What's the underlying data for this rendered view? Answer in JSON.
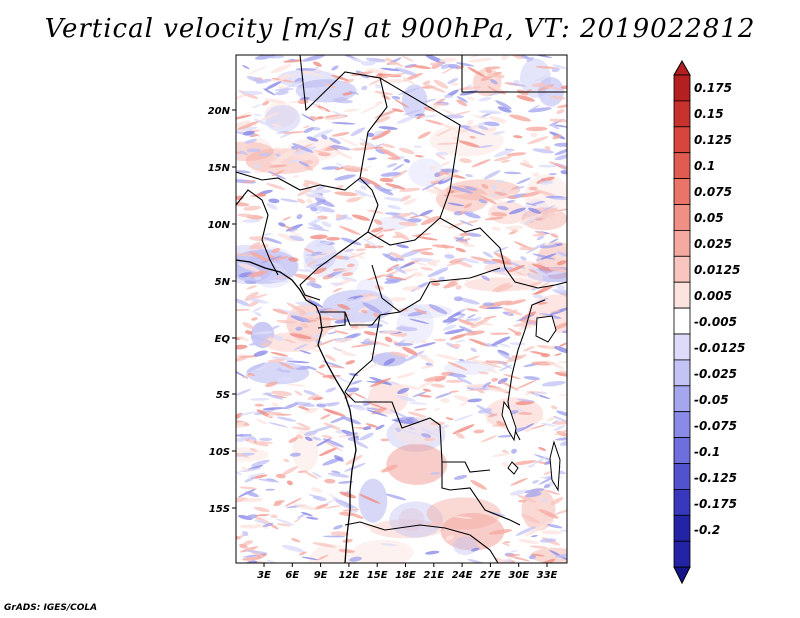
{
  "title": "Vertical velocity [m/s] at 900hPa, VT: 2019022812",
  "credit": "GrADS: IGES/COLA",
  "map": {
    "lat_labels": [
      "20N",
      "15N",
      "10N",
      "5N",
      "EQ",
      "5S",
      "10S",
      "15S"
    ],
    "lon_labels": [
      "3E",
      "6E",
      "9E",
      "12E",
      "15E",
      "18E",
      "21E",
      "24E",
      "27E",
      "30E",
      "33E"
    ]
  },
  "colorbar": {
    "labels": [
      "0.175",
      "0.15",
      "0.125",
      "0.1",
      "0.075",
      "0.05",
      "0.025",
      "0.0125",
      "0.005",
      "-0.005",
      "-0.0125",
      "-0.025",
      "-0.05",
      "-0.075",
      "-0.1",
      "-0.125",
      "-0.175",
      "-0.2"
    ],
    "colors": [
      "#b41f1f",
      "#c8322c",
      "#d8453c",
      "#e25b50",
      "#ea7468",
      "#f08f84",
      "#f5aaa1",
      "#f9c6bf",
      "#fce3de",
      "#ffffff",
      "#dcdcfa",
      "#c3c3f5",
      "#a6a6ef",
      "#8a8ae7",
      "#6e6edc",
      "#5252cf",
      "#3838bd",
      "#2323a6",
      "#15158a"
    ]
  }
}
